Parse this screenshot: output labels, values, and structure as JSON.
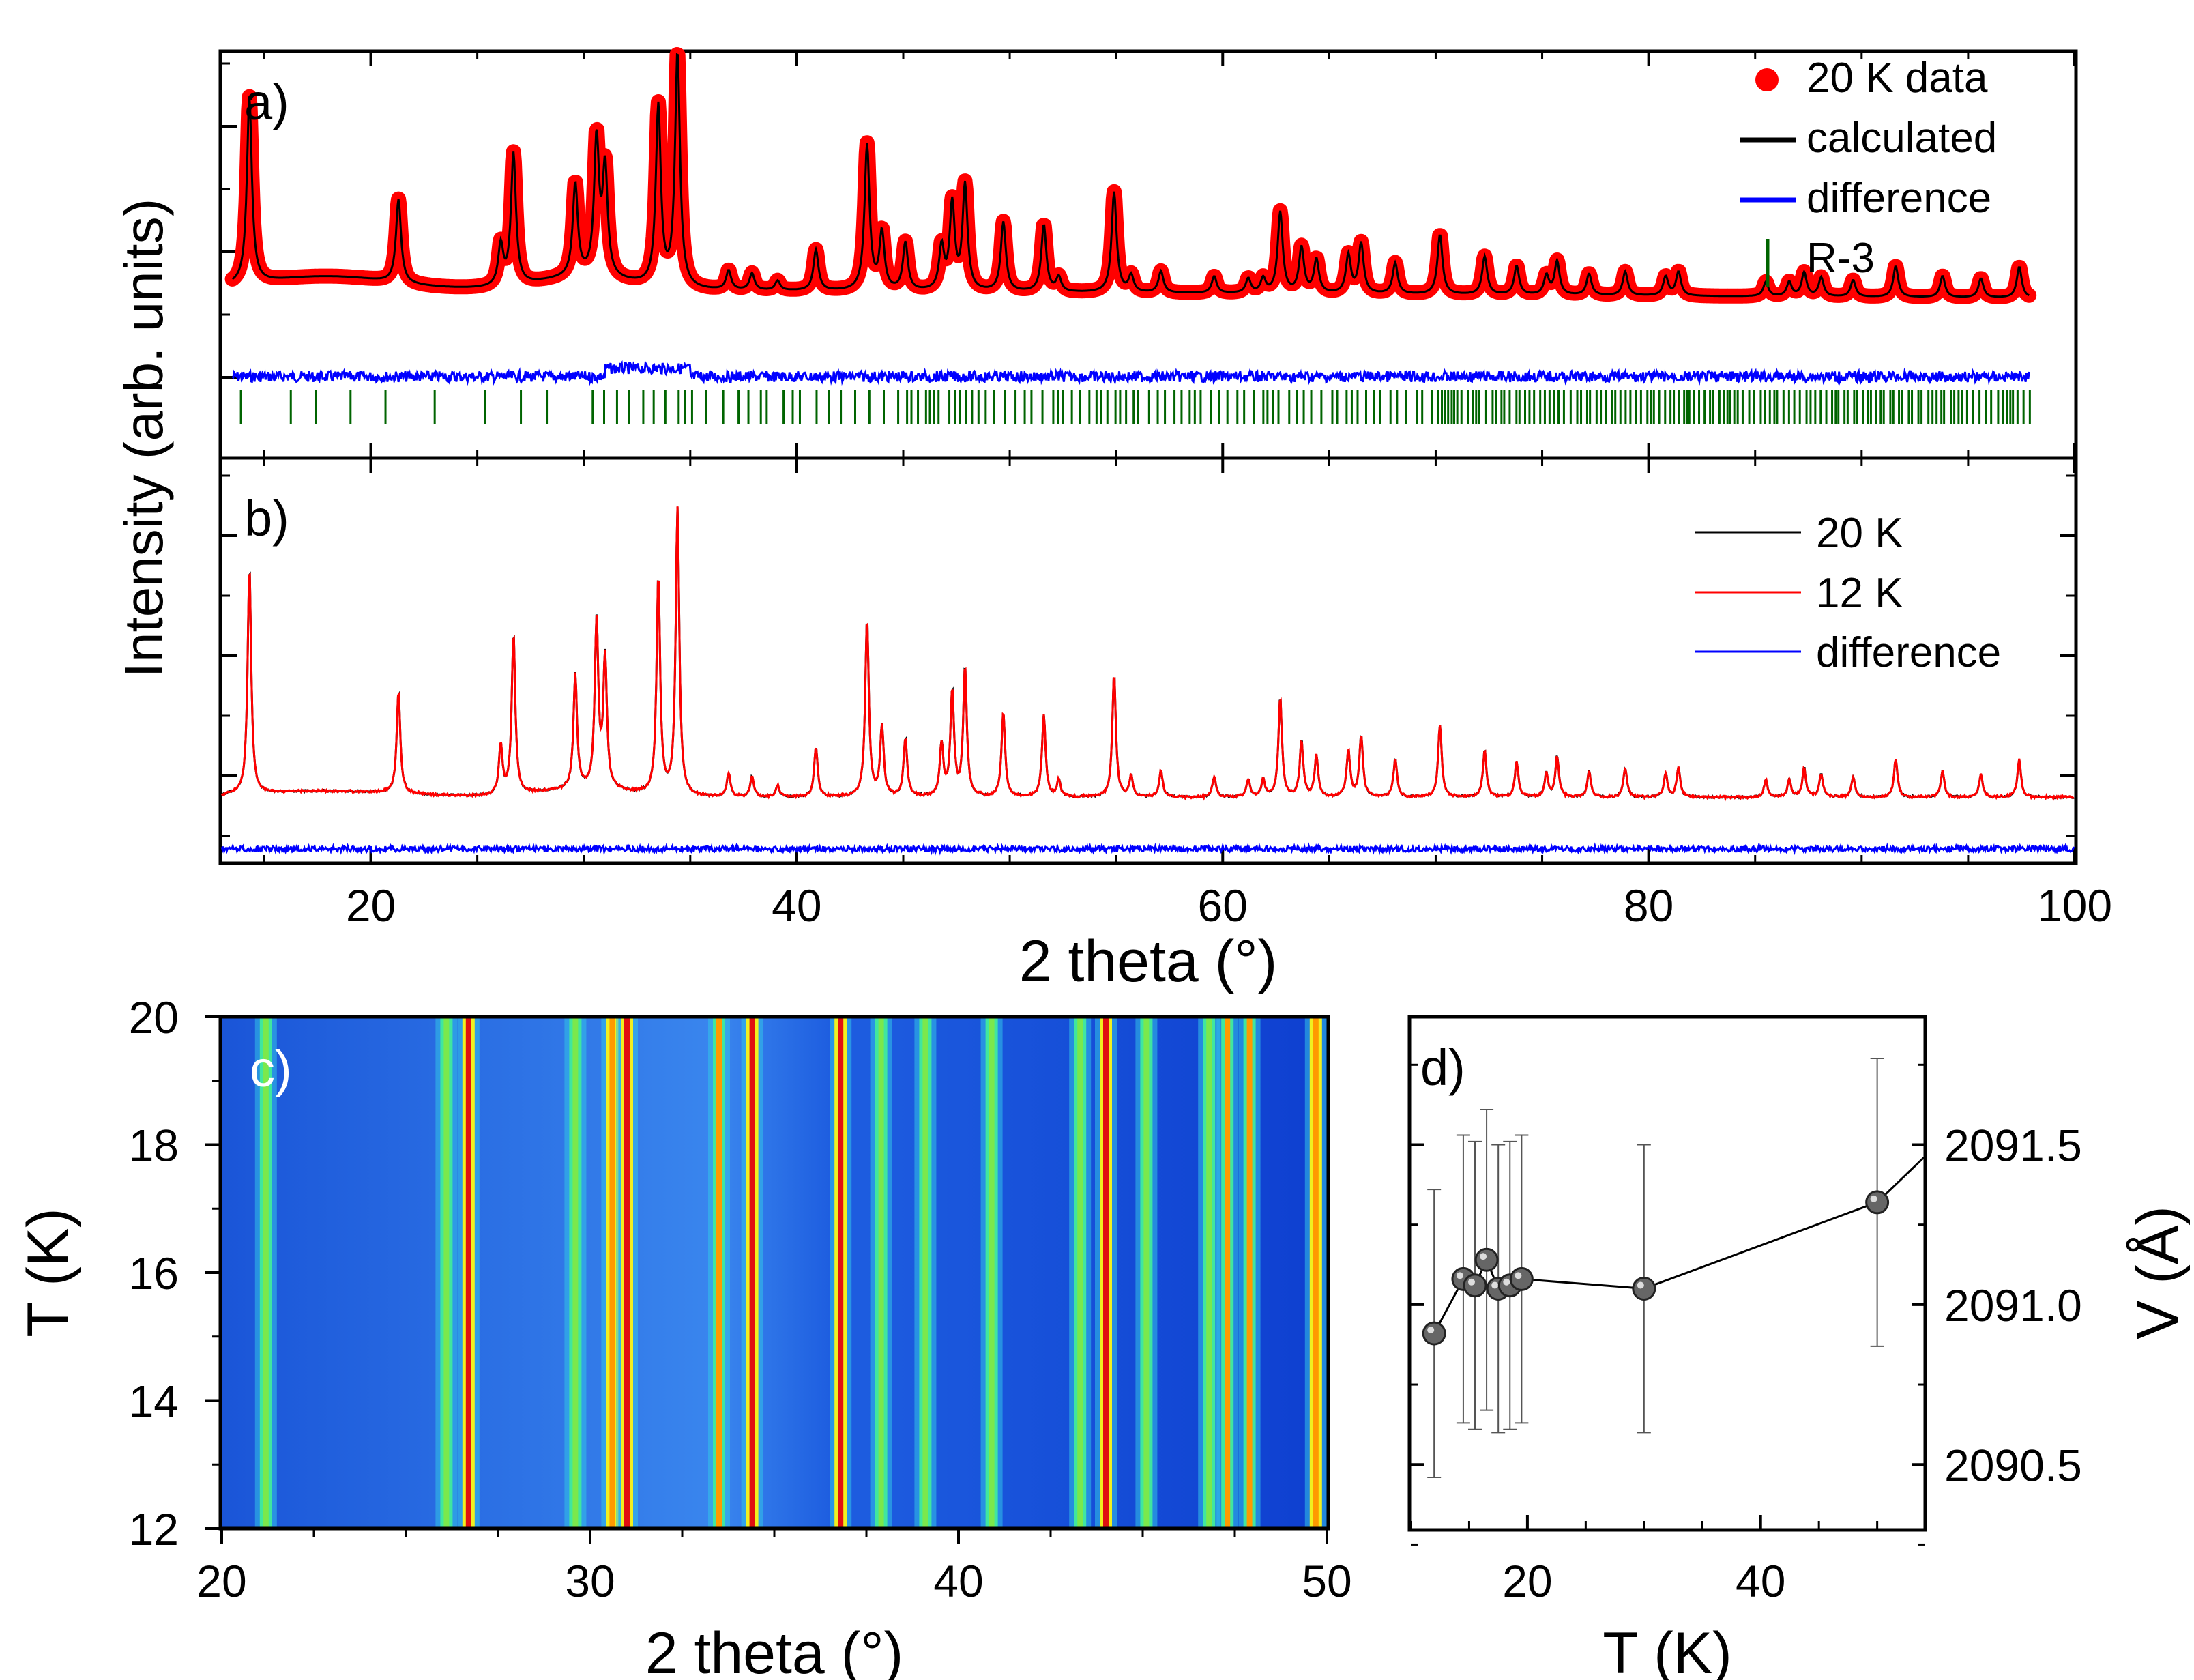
{
  "chart_data": [
    {
      "panel": "a)",
      "type": "line",
      "ylabel": "Intensity (arb. units)",
      "xlabel": "2 theta (°)",
      "xlim": [
        13,
        100
      ],
      "legend_position": "top-right",
      "legend": [
        {
          "label": "20 K data",
          "marker": "circle",
          "color": "#ff0000"
        },
        {
          "label": "calculated",
          "marker": "line",
          "color": "#000000"
        },
        {
          "label": "difference",
          "marker": "line",
          "color": "#0000ff"
        },
        {
          "label": "R-3",
          "marker": "vbar",
          "color": "#006400"
        }
      ],
      "peaks_2theta": [
        14.3,
        21.3,
        26.1,
        26.7,
        29.6,
        30.6,
        31.0,
        33.5,
        34.4,
        36.8,
        37.9,
        39.1,
        40.9,
        43.3,
        44.0,
        45.1,
        46.8,
        47.3,
        47.9,
        49.7,
        51.6,
        52.3,
        54.9,
        55.7,
        57.1,
        59.6,
        61.2,
        61.9,
        62.7,
        63.7,
        64.4,
        65.9,
        66.5,
        68.1,
        70.2,
        72.3,
        73.8,
        75.2,
        75.7,
        77.2,
        78.9,
        80.8,
        81.4,
        85.5,
        86.6,
        87.3,
        88.1,
        89.6,
        91.6,
        93.8,
        95.6,
        97.4
      ]
    },
    {
      "panel": "b)",
      "type": "line",
      "xlabel": "2 theta (°)",
      "xlim": [
        13,
        100
      ],
      "xticks": [
        20,
        40,
        60,
        80,
        100
      ],
      "legend_position": "top-right",
      "series": [
        {
          "name": "20 K",
          "color": "#000000"
        },
        {
          "name": "12 K",
          "color": "#ff0000"
        },
        {
          "name": "difference",
          "color": "#0000ff"
        }
      ]
    },
    {
      "panel": "c)",
      "type": "heatmap",
      "xlabel": "2 theta (°)",
      "ylabel": "T (K)",
      "xlim": [
        20,
        50
      ],
      "ylim": [
        12,
        20
      ],
      "xticks": [
        20,
        30,
        40,
        50
      ],
      "yticks": [
        12,
        14,
        16,
        18,
        20
      ],
      "colormap": "jet",
      "lines_2theta": [
        21.2,
        26.1,
        26.7,
        29.6,
        30.6,
        31.0,
        33.5,
        34.4,
        36.8,
        37.9,
        39.1,
        40.9,
        43.3,
        44.0,
        45.1,
        46.8,
        47.3,
        47.9,
        49.7
      ]
    },
    {
      "panel": "d)",
      "type": "scatter",
      "xlabel": "T (K)",
      "ylabel": "V (Å)",
      "xlim": [
        10,
        54
      ],
      "ylim": [
        2090.3,
        2091.9
      ],
      "xticks": [
        20,
        40
      ],
      "yticks": [
        2090.5,
        2091.0,
        2091.5
      ],
      "connected": true,
      "points": [
        {
          "x": 12,
          "y": 2090.91,
          "err": 0.45
        },
        {
          "x": 14.5,
          "y": 2091.08,
          "err": 0.45
        },
        {
          "x": 15.5,
          "y": 2091.06,
          "err": 0.45
        },
        {
          "x": 16.5,
          "y": 2091.14,
          "err": 0.47
        },
        {
          "x": 17.5,
          "y": 2091.05,
          "err": 0.45
        },
        {
          "x": 18.5,
          "y": 2091.06,
          "err": 0.45
        },
        {
          "x": 19.5,
          "y": 2091.08,
          "err": 0.45
        },
        {
          "x": 30,
          "y": 2091.05,
          "err": 0.45
        },
        {
          "x": 50,
          "y": 2091.32,
          "err": 0.45
        }
      ]
    }
  ],
  "text": {
    "ylabel_ab": "Intensity (arb. units)",
    "xlabel_ab": "2 theta (°)",
    "label_a": "a)",
    "label_b": "b)",
    "label_c": "c)",
    "label_d": "d)",
    "xlabel_c": "2 theta (°)",
    "ylabel_c": "T (K)",
    "xlabel_d": "T (K)",
    "ylabel_d": "V (Å)"
  },
  "colors": {
    "data": "#ff0000",
    "calc": "#000000",
    "diff": "#0000ff",
    "marks": "#006400"
  }
}
